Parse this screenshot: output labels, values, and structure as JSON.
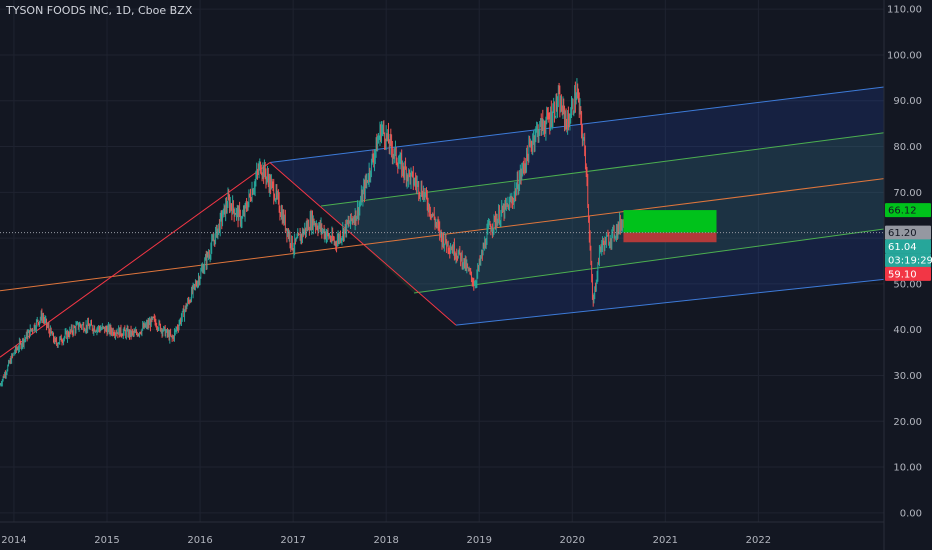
{
  "header": {
    "title": "TYSON FOODS INC, 1D, Cboe BZX"
  },
  "colors": {
    "background": "#131722",
    "grid": "#1f2330",
    "up": "#26a69a",
    "down": "#ef5350",
    "channel_blue": "#2962ff",
    "channel_green": "#4caf50",
    "median_orange": "#ff9800",
    "trend_red": "#f23645",
    "target_green": "#00c21b",
    "stop_red": "#b23a3a"
  },
  "chart_data": {
    "type": "candlestick",
    "title": "TYSON FOODS INC, 1D, Cboe BZX",
    "y_ticks": [
      "110.00",
      "100.00",
      "90.00",
      "80.00",
      "70.00",
      "60.00",
      "50.00",
      "40.00",
      "30.00",
      "20.00",
      "10.00",
      "0.00"
    ],
    "ylim": [
      -2,
      112
    ],
    "x_ticks": [
      {
        "label": "2014",
        "t": 2014.0
      },
      {
        "label": "2015",
        "t": 2015.0
      },
      {
        "label": "2016",
        "t": 2016.0
      },
      {
        "label": "2017",
        "t": 2017.0
      },
      {
        "label": "2018",
        "t": 2018.0
      },
      {
        "label": "2019",
        "t": 2019.0
      },
      {
        "label": "2020",
        "t": 2020.0
      },
      {
        "label": "2021",
        "t": 2021.0
      },
      {
        "label": "2022",
        "t": 2022.0
      }
    ],
    "xlim": [
      2013.85,
      2023.35
    ],
    "price_path": [
      [
        2013.85,
        28
      ],
      [
        2014.0,
        35
      ],
      [
        2014.3,
        43
      ],
      [
        2014.45,
        37
      ],
      [
        2014.7,
        41
      ],
      [
        2015.0,
        40
      ],
      [
        2015.3,
        39
      ],
      [
        2015.5,
        42
      ],
      [
        2015.7,
        38
      ],
      [
        2016.0,
        52
      ],
      [
        2016.1,
        57
      ],
      [
        2016.3,
        68
      ],
      [
        2016.45,
        64
      ],
      [
        2016.65,
        76
      ],
      [
        2016.8,
        70
      ],
      [
        2017.0,
        58
      ],
      [
        2017.2,
        64
      ],
      [
        2017.45,
        59
      ],
      [
        2017.7,
        66
      ],
      [
        2017.95,
        84
      ],
      [
        2018.15,
        76
      ],
      [
        2018.4,
        70
      ],
      [
        2018.6,
        60
      ],
      [
        2018.8,
        56
      ],
      [
        2018.95,
        50
      ],
      [
        2019.1,
        62
      ],
      [
        2019.35,
        68
      ],
      [
        2019.6,
        83
      ],
      [
        2019.75,
        86
      ],
      [
        2019.85,
        90
      ],
      [
        2019.95,
        85
      ],
      [
        2020.05,
        92
      ],
      [
        2020.15,
        76
      ],
      [
        2020.22,
        45
      ],
      [
        2020.3,
        58
      ],
      [
        2020.45,
        61
      ],
      [
        2020.55,
        64
      ],
      [
        2020.6,
        61.2
      ]
    ],
    "channel": {
      "upper": [
        [
          2016.75,
          76.5
        ],
        [
          2023.35,
          93
        ]
      ],
      "upper_mid": [
        [
          2017.3,
          67
        ],
        [
          2023.35,
          83
        ]
      ],
      "median": [
        [
          2013.85,
          48.5
        ],
        [
          2023.35,
          73
        ]
      ],
      "lower_mid": [
        [
          2018.3,
          48
        ],
        [
          2023.35,
          62
        ]
      ],
      "lower": [
        [
          2018.75,
          41
        ],
        [
          2023.35,
          51
        ]
      ]
    },
    "trendlines": [
      {
        "from": [
          2013.85,
          34
        ],
        "to": [
          2016.75,
          76.5
        ]
      },
      {
        "from": [
          2016.75,
          76.5
        ],
        "to": [
          2018.75,
          41
        ]
      }
    ],
    "position": {
      "start": 2020.55,
      "end": 2021.55,
      "entry": 61.2,
      "target": 66.12,
      "stop": 59.1
    },
    "price_tags": [
      {
        "label": "66.12",
        "value": 66.12,
        "bg": "#00c21b",
        "fg": "#131722"
      },
      {
        "label": "61.20",
        "value": 61.2,
        "bg": "#9598a1",
        "fg": "#131722"
      },
      {
        "label": "61.04",
        "value": 58.2,
        "bg": "#26a69a",
        "fg": "#ffffff"
      },
      {
        "label": "03:19:29",
        "value": 55.2,
        "bg": "#26a69a",
        "fg": "#ffffff"
      },
      {
        "label": "59.10",
        "value": 52.2,
        "bg": "#f23645",
        "fg": "#ffffff"
      }
    ]
  }
}
